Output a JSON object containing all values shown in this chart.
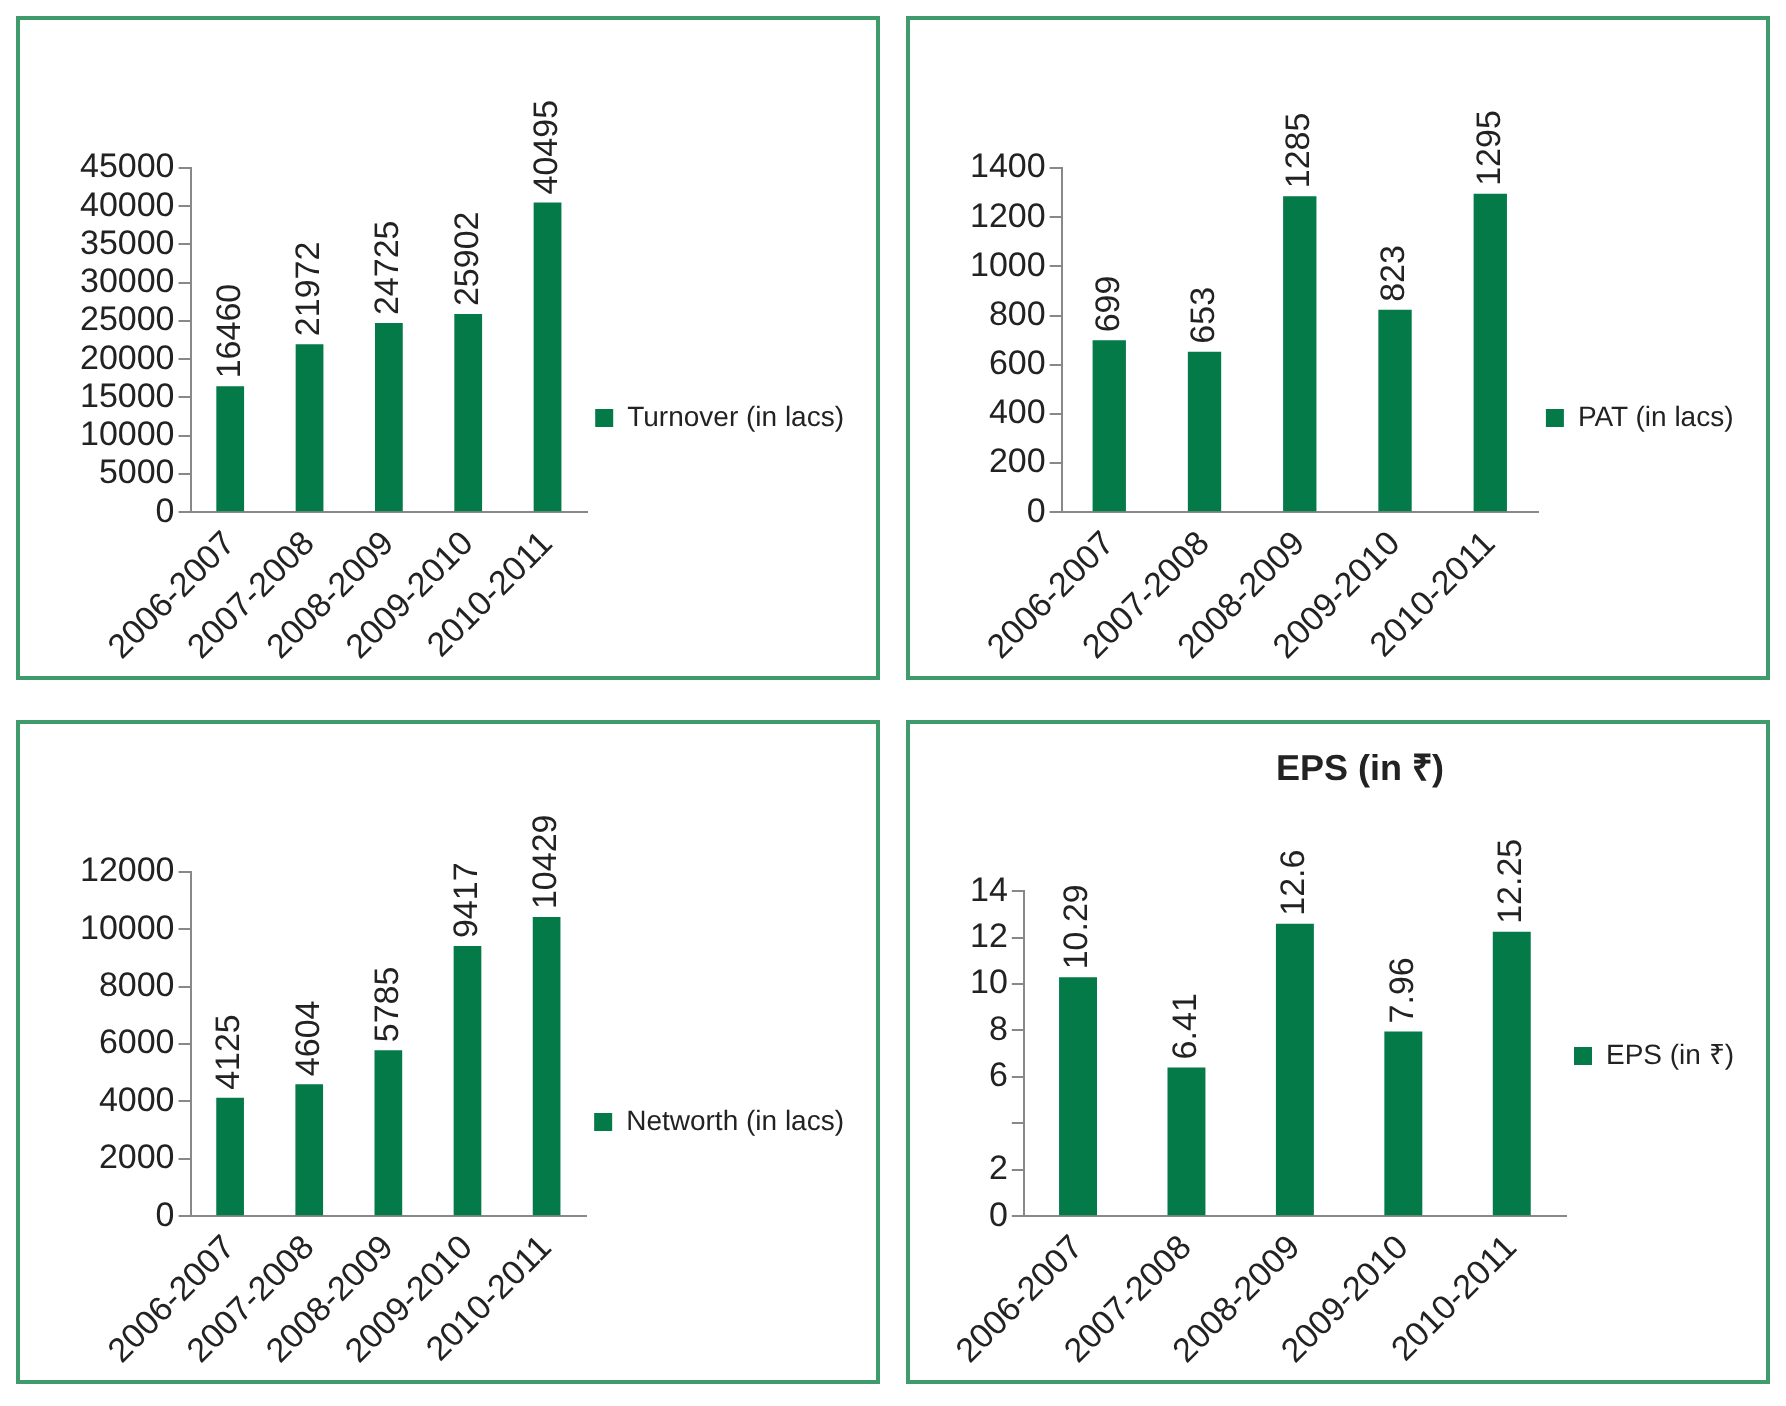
{
  "chart_data": [
    {
      "type": "bar",
      "categories": [
        "2006-2007",
        "2007-2008",
        "2008-2009",
        "2009-2010",
        "2010-2011"
      ],
      "series": [
        {
          "name": "Turnover (in lacs)",
          "color": "#047a48",
          "values": [
            16460,
            21972,
            24725,
            25902,
            40495
          ]
        }
      ],
      "ylim": [
        0,
        45000
      ],
      "yticks": [
        0,
        5000,
        10000,
        15000,
        20000,
        25000,
        30000,
        35000,
        40000,
        45000
      ],
      "grid": false,
      "legend": "right",
      "data_labels": true
    },
    {
      "type": "bar",
      "categories": [
        "2006-2007",
        "2007-2008",
        "2008-2009",
        "2009-2010",
        "2010-2011"
      ],
      "series": [
        {
          "name": "PAT (in lacs)",
          "color": "#047a48",
          "values": [
            699,
            653,
            1285,
            823,
            1295
          ]
        }
      ],
      "ylim": [
        0,
        1400
      ],
      "yticks": [
        0,
        200,
        400,
        600,
        800,
        1000,
        1200,
        1400
      ],
      "grid": false,
      "legend": "right",
      "data_labels": true
    },
    {
      "type": "bar",
      "categories": [
        "2006-2007",
        "2007-2008",
        "2008-2009",
        "2009-2010",
        "2010-2011"
      ],
      "series": [
        {
          "name": "Networth (in lacs)",
          "color": "#047a48",
          "values": [
            4125,
            4604,
            5785,
            9417,
            10429
          ]
        }
      ],
      "ylim": [
        0,
        12000
      ],
      "yticks": [
        0,
        2000,
        4000,
        6000,
        8000,
        10000,
        12000
      ],
      "grid": false,
      "legend": "right",
      "data_labels": true
    },
    {
      "type": "bar",
      "title": "EPS (in ₹)",
      "categories": [
        "2006-2007",
        "2007-2008",
        "2008-2009",
        "2009-2010",
        "2010-2011"
      ],
      "series": [
        {
          "name": "EPS (in ₹)",
          "color": "#047a48",
          "values": [
            10.29,
            6.41,
            12.6,
            7.96,
            12.25
          ]
        }
      ],
      "ylim": [
        0,
        14
      ],
      "yticks": [
        0,
        2,
        {
          "value": 4,
          "label": null
        },
        6,
        8,
        10,
        12,
        14
      ],
      "grid": false,
      "legend": "right",
      "data_labels": true
    }
  ]
}
